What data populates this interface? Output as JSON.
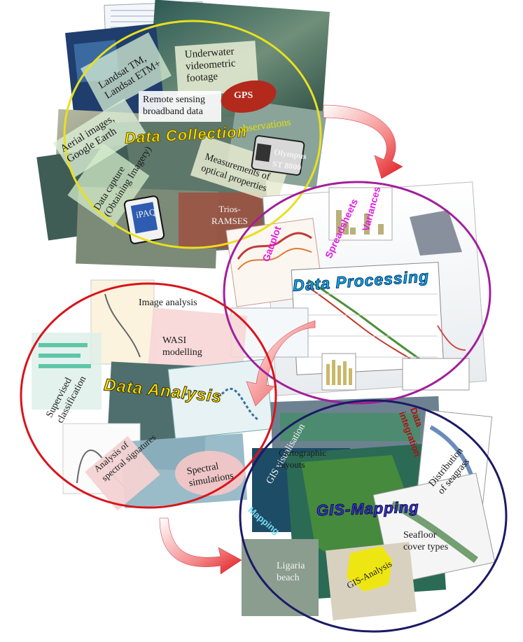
{
  "stages": {
    "collection": {
      "title": "Data Collection",
      "color": "#ffe600",
      "ring": "#e8e020"
    },
    "processing": {
      "title": "Data Processing",
      "color": "#18a8f0",
      "ring": "#a0209a"
    },
    "analysis": {
      "title": "Data Analysis",
      "color": "#ffe600",
      "ring": "#d8141c"
    },
    "mapping": {
      "title": "GIS-Mapping",
      "color": "#3a38d8",
      "ring": "#1c1a66"
    }
  },
  "collection_labels": {
    "underwater": "Underwater\nvideometric\nfootage",
    "gps": "GPS",
    "landsat": "Landsat TM,\nLandsat ETM+",
    "remote": "Remote sensing\nbroadband data",
    "observations": "observations",
    "aerial": "Aerial images,\nGoogle Earth",
    "olympus": "Olympus\nST 8000",
    "capture": "Data capture\n(Obtaining Imagery)",
    "optical": "Measurements of\noptical properties",
    "ipaq": "iPAQ",
    "ramses": "Trios-\nRAMSES"
  },
  "processing_labels": {
    "gauplot": "Gauplot",
    "spreadsheets": "Spreadsheets",
    "variances": "Variances"
  },
  "analysis_labels": {
    "image": "Image analysis",
    "wasi": "WASI\nmodelling",
    "supervised": "Supervised\nclassification",
    "spectral_sig": "Analysis of\nspectral signatures",
    "spectral_sim": "Spectral\nsimulations"
  },
  "mapping_labels": {
    "integration": "Data\nintegration",
    "gis_vis": "GIS visualisation",
    "cartographic": "Cartographic\nlayouts",
    "distribution": "Distribution\nof seagrass",
    "mapping": "Mapping",
    "seafloor": "Seafloor\ncover types",
    "ligaria": "Ligaria\nbeach",
    "gis_analysis": "GIS-Analysis"
  }
}
